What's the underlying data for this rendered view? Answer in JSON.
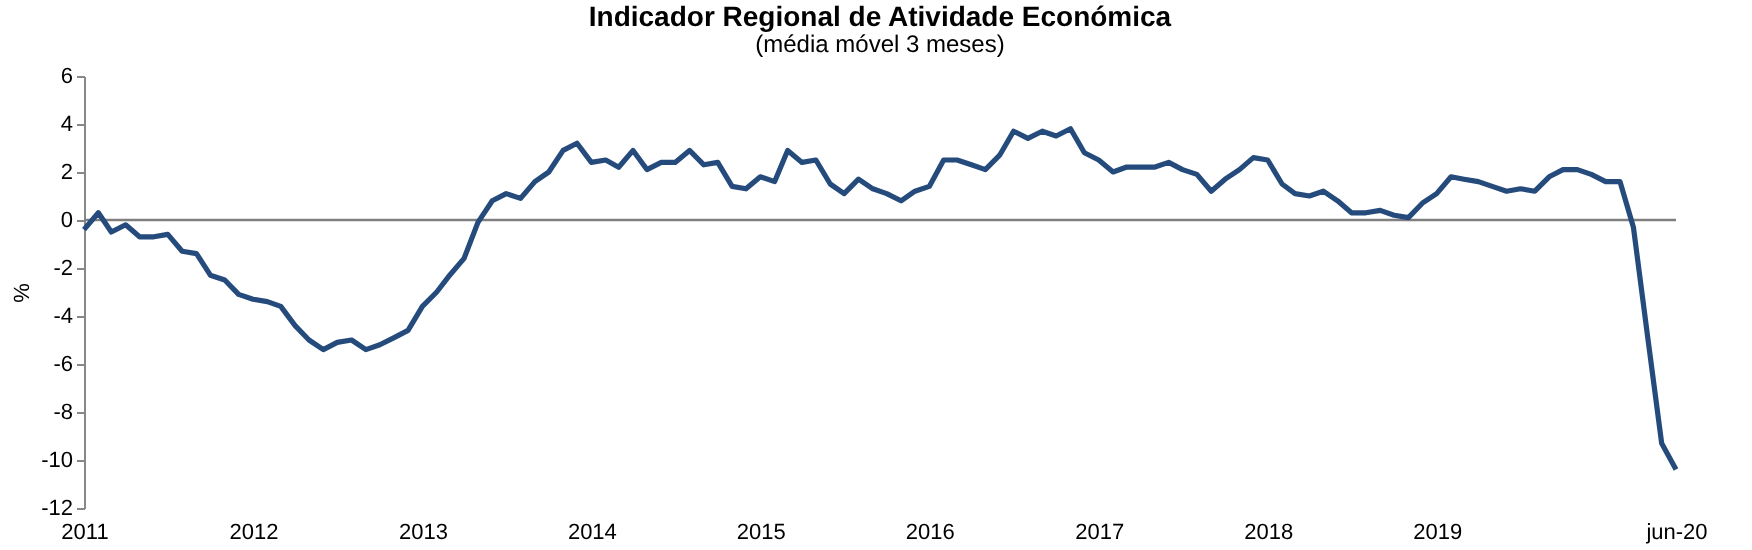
{
  "chart_data": {
    "type": "line",
    "title": "Indicador Regional de Atividade Económica",
    "subtitle": "(média móvel  3 meses)",
    "ylabel": "%",
    "x": [
      "2011-01",
      "2011-02",
      "2011-03",
      "2011-04",
      "2011-05",
      "2011-06",
      "2011-07",
      "2011-08",
      "2011-09",
      "2011-10",
      "2011-11",
      "2011-12",
      "2012-01",
      "2012-02",
      "2012-03",
      "2012-04",
      "2012-05",
      "2012-06",
      "2012-07",
      "2012-08",
      "2012-09",
      "2012-10",
      "2012-11",
      "2012-12",
      "2013-01",
      "2013-02",
      "2013-03",
      "2013-04",
      "2013-05",
      "2013-06",
      "2013-07",
      "2013-08",
      "2013-09",
      "2013-10",
      "2013-11",
      "2013-12",
      "2014-01",
      "2014-02",
      "2014-03",
      "2014-04",
      "2014-05",
      "2014-06",
      "2014-07",
      "2014-08",
      "2014-09",
      "2014-10",
      "2014-11",
      "2014-12",
      "2015-01",
      "2015-02",
      "2015-03",
      "2015-04",
      "2015-05",
      "2015-06",
      "2015-07",
      "2015-08",
      "2015-09",
      "2015-10",
      "2015-11",
      "2015-12",
      "2016-01",
      "2016-02",
      "2016-03",
      "2016-04",
      "2016-05",
      "2016-06",
      "2016-07",
      "2016-08",
      "2016-09",
      "2016-10",
      "2016-11",
      "2016-12",
      "2017-01",
      "2017-02",
      "2017-03",
      "2017-04",
      "2017-05",
      "2017-06",
      "2017-07",
      "2017-08",
      "2017-09",
      "2017-10",
      "2017-11",
      "2017-12",
      "2018-01",
      "2018-02",
      "2018-03",
      "2018-04",
      "2018-05",
      "2018-06",
      "2018-07",
      "2018-08",
      "2018-09",
      "2018-10",
      "2018-11",
      "2018-12",
      "2019-01",
      "2019-02",
      "2019-03",
      "2019-04",
      "2019-05",
      "2019-06",
      "2019-07",
      "2019-08",
      "2019-09",
      "2019-10",
      "2019-11",
      "2019-12",
      "2020-01",
      "2020-02",
      "2020-03",
      "2020-04",
      "2020-05",
      "2020-06"
    ],
    "series": [
      {
        "color": "#254b7c",
        "values": [
          -0.4,
          0.3,
          -0.5,
          -0.2,
          -0.7,
          -0.7,
          -0.6,
          -1.3,
          -1.4,
          -2.3,
          -2.5,
          -3.1,
          -3.3,
          -3.4,
          -3.6,
          -4.4,
          -5.0,
          -5.4,
          -5.1,
          -5.0,
          -5.4,
          -5.2,
          -4.9,
          -4.6,
          -3.6,
          -3.0,
          -2.3,
          -1.6,
          -0.1,
          0.8,
          1.1,
          0.9,
          1.6,
          2.0,
          2.9,
          3.2,
          2.4,
          2.5,
          2.2,
          2.9,
          2.1,
          2.4,
          2.4,
          2.9,
          2.3,
          2.4,
          1.4,
          1.3,
          1.8,
          1.6,
          2.9,
          2.4,
          2.5,
          1.5,
          1.1,
          1.7,
          1.3,
          1.1,
          0.8,
          1.2,
          1.4,
          2.5,
          2.5,
          2.3,
          2.1,
          2.7,
          3.7,
          3.4,
          3.7,
          3.5,
          3.8,
          2.8,
          2.5,
          2.0,
          2.2,
          2.2,
          2.2,
          2.4,
          2.1,
          1.9,
          1.2,
          1.7,
          2.1,
          2.6,
          2.5,
          1.5,
          1.1,
          1.0,
          1.2,
          0.8,
          0.3,
          0.3,
          0.4,
          0.2,
          0.1,
          0.7,
          1.1,
          1.8,
          1.7,
          1.6,
          1.4,
          1.2,
          1.3,
          1.2,
          1.8,
          2.1,
          2.1,
          1.9,
          1.6,
          1.6,
          -0.3,
          -4.9,
          -9.3,
          -10.4
        ]
      }
    ],
    "xlim": [
      "2011-01",
      "2020-06"
    ],
    "xticks": [
      {
        "value": "2011-01",
        "label": "2011"
      },
      {
        "value": "2012-01",
        "label": "2012"
      },
      {
        "value": "2013-01",
        "label": "2013"
      },
      {
        "value": "2014-01",
        "label": "2014"
      },
      {
        "value": "2015-01",
        "label": "2015"
      },
      {
        "value": "2016-01",
        "label": "2016"
      },
      {
        "value": "2017-01",
        "label": "2017"
      },
      {
        "value": "2018-01",
        "label": "2018"
      },
      {
        "value": "2019-01",
        "label": "2019"
      },
      {
        "value": "2020-06",
        "label": "jun-20"
      }
    ],
    "ylim": [
      -12,
      6
    ],
    "yticks": [
      -12,
      -10,
      -8,
      -6,
      -4,
      -2,
      0,
      2,
      4,
      6
    ],
    "ref_lines": [
      {
        "axis": "y",
        "value": 0,
        "color": "#808080"
      }
    ],
    "grid": false,
    "legend": false,
    "marker": "none",
    "line_style": "solid"
  }
}
